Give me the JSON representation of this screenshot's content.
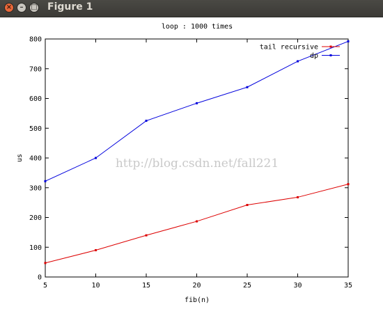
{
  "window": {
    "title": "Figure 1",
    "buttons": {
      "close": "×",
      "minimize": "–",
      "maximize": "□"
    }
  },
  "watermark": "http://blog.csdn.net/fall221",
  "chart_data": {
    "type": "line",
    "title": "loop : 1000 times",
    "xlabel": "fib(n)",
    "ylabel": "us",
    "x": [
      5,
      10,
      15,
      20,
      25,
      30,
      35
    ],
    "xlim": [
      5,
      35
    ],
    "ylim": [
      0,
      800
    ],
    "xticks": [
      5,
      10,
      15,
      20,
      25,
      30,
      35
    ],
    "yticks": [
      0,
      100,
      200,
      300,
      400,
      500,
      600,
      700,
      800
    ],
    "grid": false,
    "legend_position": "top-right",
    "series": [
      {
        "name": "tail recursive",
        "color": "#dd0000",
        "values": [
          47,
          90,
          140,
          187,
          242,
          268,
          312
        ]
      },
      {
        "name": "dp",
        "color": "#0000dd",
        "values": [
          322,
          400,
          525,
          584,
          638,
          725,
          792
        ]
      }
    ]
  }
}
